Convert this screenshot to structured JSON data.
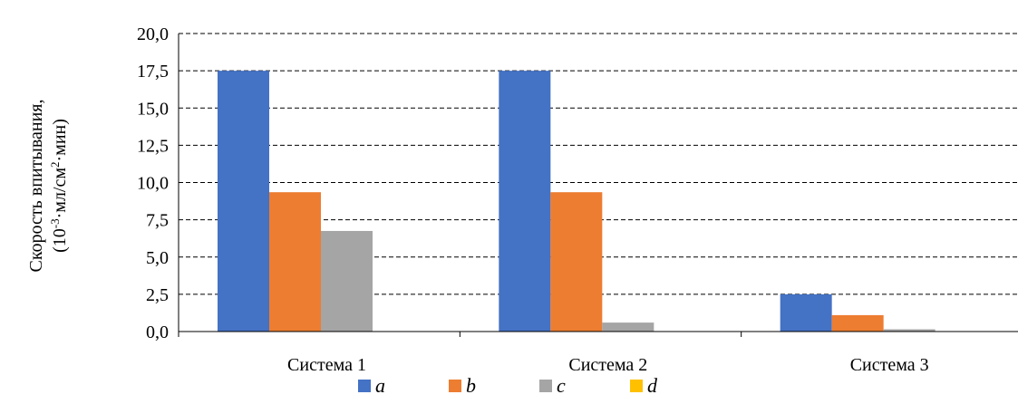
{
  "chart_data": {
    "type": "bar",
    "categories": [
      "Система 1",
      "Система 2",
      "Система 3"
    ],
    "series": [
      {
        "name": "a",
        "color": "#4472C4",
        "values": [
          17.5,
          17.5,
          2.5
        ]
      },
      {
        "name": "b",
        "color": "#ED7D31",
        "values": [
          9.35,
          9.35,
          1.1
        ]
      },
      {
        "name": "c",
        "color": "#A5A5A5",
        "values": [
          6.75,
          0.6,
          0.15
        ]
      },
      {
        "name": "d",
        "color": "#FFC000",
        "values": [
          0,
          0,
          0
        ]
      }
    ],
    "ylabel_line1": "Скорость впитывания,",
    "ylabel_line2_prefix": "(10",
    "ylabel_line2_exp": "-3",
    "ylabel_line2_mid": "·мл/см",
    "ylabel_line2_exp2": "2",
    "ylabel_line2_suffix": "·мин)",
    "ylim": [
      0,
      20
    ],
    "yticks": [
      "0,0",
      "2,5",
      "5,0",
      "7,5",
      "10,0",
      "12,5",
      "15,0",
      "17,5",
      "20,0"
    ],
    "ytick_values": [
      0,
      2.5,
      5,
      7.5,
      10,
      12.5,
      15,
      17.5,
      20
    ],
    "grid": "horizontal dashed",
    "legend_position": "bottom"
  }
}
